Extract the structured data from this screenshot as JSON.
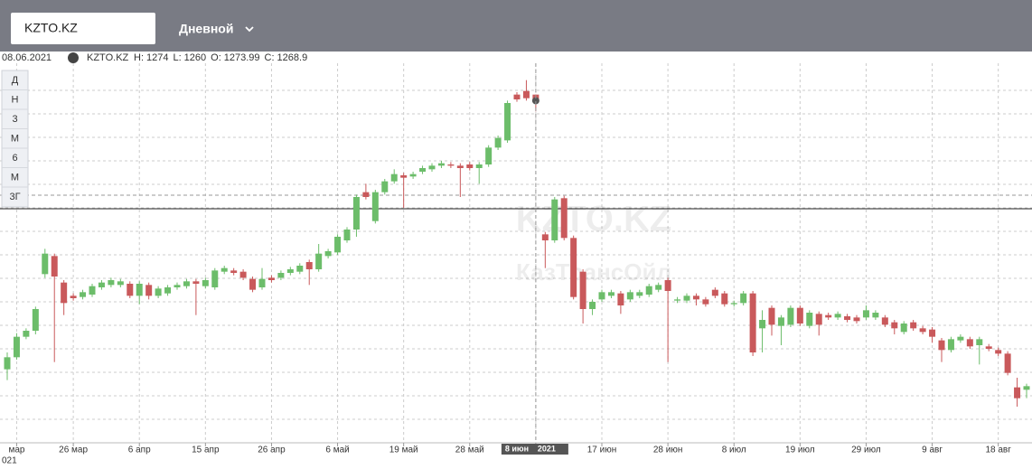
{
  "header": {
    "symbol": "KZTO.KZ",
    "interval": "Дневной"
  },
  "info": {
    "date": "08.06.2021",
    "symbol": "KZTO.KZ",
    "labels": [
      "H:",
      "L:",
      "O:",
      "C:"
    ]
  },
  "periods": [
    "Д",
    "Н",
    "3",
    "М",
    "6",
    "М",
    "3Г"
  ],
  "watermark": {
    "title": "KZTO.KZ",
    "subtitle": "КазТрансОйл"
  },
  "crosshair": {
    "year": "2021"
  },
  "x_year_label": "021",
  "chart_data": {
    "type": "candlestick",
    "categories": [
      null,
      "мар",
      null,
      null,
      null,
      null,
      null,
      "26 мар",
      null,
      null,
      null,
      null,
      null,
      null,
      "6 апр",
      null,
      null,
      null,
      null,
      null,
      null,
      "15 апр",
      null,
      null,
      null,
      null,
      null,
      null,
      "26 апр",
      null,
      null,
      null,
      null,
      null,
      null,
      "6 май",
      null,
      null,
      null,
      null,
      null,
      null,
      "19 май",
      null,
      null,
      null,
      null,
      null,
      null,
      "28 май",
      null,
      null,
      null,
      null,
      null,
      null,
      "8 июн",
      null,
      null,
      null,
      null,
      null,
      null,
      "17 июн",
      null,
      null,
      null,
      null,
      null,
      null,
      "28 июн",
      null,
      null,
      null,
      null,
      null,
      null,
      "8 июл",
      null,
      null,
      null,
      null,
      null,
      null,
      "19 июл",
      null,
      null,
      null,
      null,
      null,
      null,
      "29 июл",
      null,
      null,
      null,
      null,
      null,
      null,
      "9 авг",
      null,
      null,
      null,
      null,
      null,
      null,
      "18 авг",
      null,
      null,
      null
    ],
    "open": [
      1046,
      1056,
      1073,
      1078,
      1125,
      1140,
      1118,
      1107,
      1106,
      1108,
      1114,
      1116,
      1116,
      1117,
      1107,
      1116,
      1107,
      1109,
      1114,
      1115,
      1119,
      1115,
      1114,
      1127,
      1128,
      1127,
      1121,
      1114,
      1122,
      1122,
      1126,
      1127,
      1135,
      1129,
      1140,
      1143,
      1153,
      1162,
      1193,
      1169,
      1193,
      1202,
      1207,
      1206,
      1210,
      1212,
      1215,
      1216,
      1215,
      1216,
      1213,
      1216,
      1230,
      1236,
      1274,
      1277,
      1273.99,
      1158,
      1153,
      1188,
      1155,
      1127,
      1096,
      1104,
      1107,
      1109,
      1104,
      1107,
      1108,
      1112,
      1120,
      1103,
      1103,
      1107,
      1104,
      1112,
      1109,
      1100,
      1101,
      1109,
      1080,
      1097,
      1082,
      1083,
      1097,
      1082,
      1092,
      1091,
      1089,
      1090,
      1089,
      1089,
      1089,
      1089,
      1085,
      1077,
      1085,
      1080,
      1079,
      1070,
      1062,
      1070,
      1071,
      1066,
      1065,
      1062,
      1059,
      1031,
      1029
    ],
    "high": [
      1060,
      1076,
      1080,
      1098,
      1146,
      1142,
      1120,
      1109,
      1112,
      1117,
      1120,
      1122,
      1121,
      1119,
      1119,
      1118,
      1115,
      1116,
      1118,
      1121,
      1121,
      1122,
      1130,
      1132,
      1130,
      1129,
      1123,
      1130,
      1124,
      1128,
      1131,
      1134,
      1137,
      1150,
      1146,
      1158,
      1164,
      1191,
      1200,
      1195,
      1204,
      1212,
      1209,
      1210,
      1215,
      1217,
      1219,
      1218,
      1217,
      1218,
      1218,
      1232,
      1240,
      1269,
      1276,
      1286,
      1274,
      1160,
      1189,
      1190,
      1157,
      1129,
      1104,
      1112,
      1112,
      1111,
      1112,
      1112,
      1117,
      1118,
      1122,
      1106,
      1109,
      1109,
      1106,
      1114,
      1111,
      1103,
      1111,
      1111,
      1095,
      1099,
      1091,
      1099,
      1099,
      1095,
      1094,
      1093,
      1094,
      1092,
      1091,
      1099,
      1095,
      1091,
      1087,
      1086,
      1087,
      1082,
      1081,
      1072,
      1073,
      1075,
      1073,
      1073,
      1067,
      1064,
      1061,
      1039,
      1034
    ],
    "low": [
      1037,
      1054,
      1071,
      1075,
      1122,
      1052,
      1091,
      1103,
      1104,
      1106,
      1112,
      1114,
      1114,
      1105,
      1100,
      1104,
      1105,
      1107,
      1112,
      1113,
      1091,
      1113,
      1112,
      1125,
      1124,
      1120,
      1110,
      1112,
      1118,
      1120,
      1124,
      1125,
      1116,
      1127,
      1138,
      1141,
      1151,
      1156,
      1187,
      1167,
      1191,
      1200,
      1180,
      1204,
      1208,
      1210,
      1213,
      1213,
      1189,
      1211,
      1200,
      1214,
      1228,
      1234,
      1268,
      1269,
      1260,
      1130,
      1151,
      1153,
      1104,
      1084,
      1091,
      1102,
      1105,
      1092,
      1102,
      1105,
      1106,
      1110,
      1052,
      1101,
      1101,
      1099,
      1098,
      1105,
      1098,
      1098,
      1099,
      1057,
      1060,
      1074,
      1066,
      1081,
      1082,
      1080,
      1074,
      1087,
      1087,
      1085,
      1084,
      1087,
      1087,
      1081,
      1075,
      1075,
      1078,
      1075,
      1068,
      1052,
      1060,
      1068,
      1063,
      1050,
      1061,
      1057,
      1041,
      1015,
      1022
    ],
    "close": [
      1056,
      1073,
      1078,
      1096,
      1142,
      1123,
      1101,
      1105,
      1110,
      1115,
      1118,
      1120,
      1119,
      1107,
      1117,
      1107,
      1113,
      1114,
      1116,
      1119,
      1117,
      1120,
      1128,
      1130,
      1126,
      1122,
      1112,
      1121,
      1120,
      1126,
      1129,
      1132,
      1129,
      1142,
      1144,
      1156,
      1162,
      1189,
      1189,
      1193,
      1202,
      1208,
      1205,
      1208,
      1213,
      1215,
      1217,
      1215,
      1213,
      1213,
      1216,
      1230,
      1238,
      1267,
      1270,
      1271,
      1268.9,
      1153,
      1187,
      1155,
      1106,
      1096,
      1102,
      1110,
      1110,
      1099,
      1110,
      1110,
      1115,
      1116,
      1111,
      1104,
      1107,
      1104,
      1100,
      1107,
      1100,
      1101,
      1109,
      1060,
      1087,
      1083,
      1089,
      1097,
      1084,
      1093,
      1083,
      1089,
      1092,
      1087,
      1086,
      1095,
      1093,
      1083,
      1080,
      1084,
      1080,
      1077,
      1073,
      1062,
      1071,
      1073,
      1065,
      1071,
      1063,
      1059,
      1043,
      1022,
      1032
    ],
    "ylim": [
      985,
      1300
    ],
    "up_color": "#6cbd6a",
    "down_color": "#c9595b"
  }
}
